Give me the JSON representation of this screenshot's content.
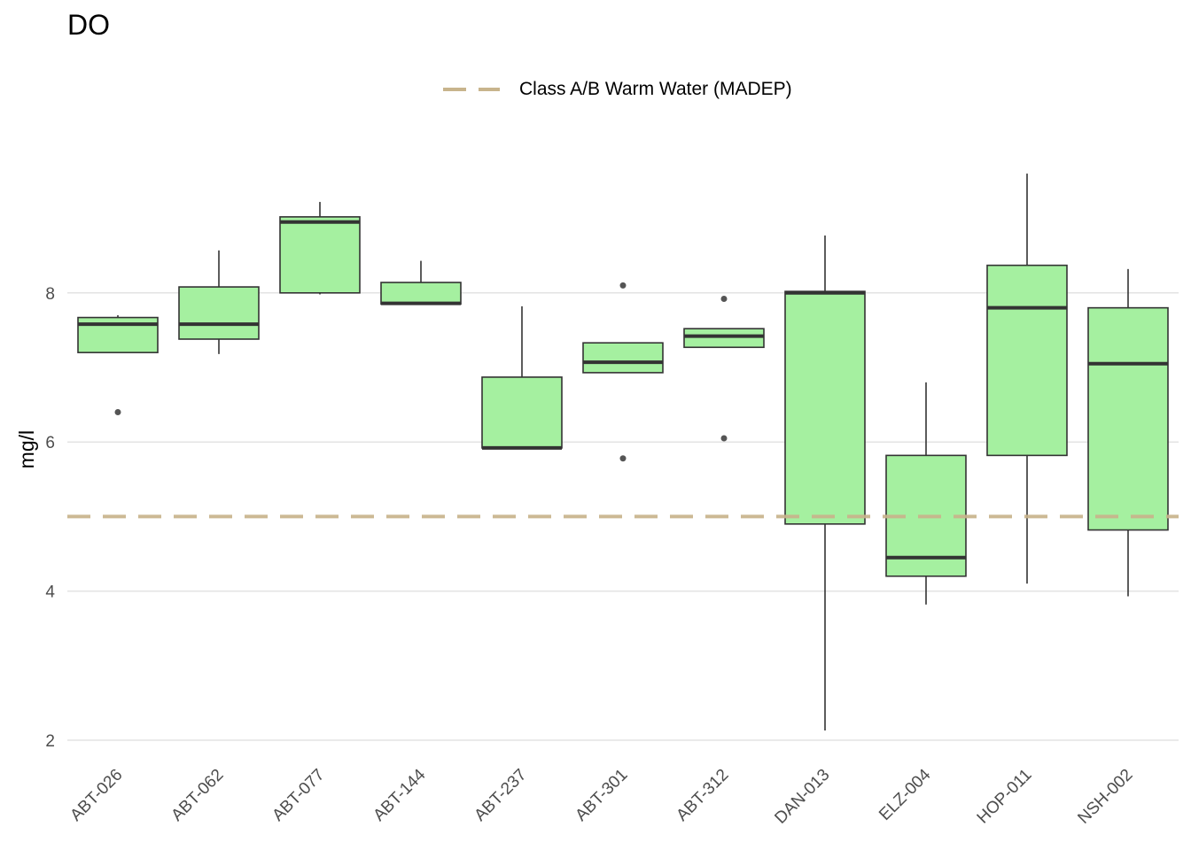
{
  "chart_data": {
    "type": "boxplot",
    "title": "DO",
    "xlabel": "",
    "ylabel": "mg/l",
    "ylim": [
      1.9,
      10.2
    ],
    "yticks": [
      2,
      4,
      6,
      8
    ],
    "grid": true,
    "fill_color": "#a5f0a0",
    "line_color": "#333333",
    "categories": [
      "ABT-026",
      "ABT-062",
      "ABT-077",
      "ABT-144",
      "ABT-237",
      "ABT-301",
      "ABT-312",
      "DAN-013",
      "ELZ-004",
      "HOP-011",
      "NSH-002"
    ],
    "boxes": [
      {
        "category": "ABT-026",
        "whisker_low": 7.2,
        "q1": 7.2,
        "median": 7.58,
        "q3": 7.67,
        "whisker_high": 7.7,
        "outliers": [
          6.4
        ]
      },
      {
        "category": "ABT-062",
        "whisker_low": 7.18,
        "q1": 7.38,
        "median": 7.58,
        "q3": 8.08,
        "whisker_high": 8.57,
        "outliers": []
      },
      {
        "category": "ABT-077",
        "whisker_low": 7.98,
        "q1": 8.0,
        "median": 8.95,
        "q3": 9.02,
        "whisker_high": 9.22,
        "outliers": []
      },
      {
        "category": "ABT-144",
        "whisker_low": 7.85,
        "q1": 7.85,
        "median": 7.86,
        "q3": 8.14,
        "whisker_high": 8.43,
        "outliers": []
      },
      {
        "category": "ABT-237",
        "whisker_low": 5.92,
        "q1": 5.92,
        "median": 5.92,
        "q3": 6.87,
        "whisker_high": 7.82,
        "outliers": []
      },
      {
        "category": "ABT-301",
        "whisker_low": 6.93,
        "q1": 6.93,
        "median": 7.07,
        "q3": 7.33,
        "whisker_high": 7.33,
        "outliers": [
          8.1,
          5.78
        ]
      },
      {
        "category": "ABT-312",
        "whisker_low": 7.27,
        "q1": 7.27,
        "median": 7.42,
        "q3": 7.52,
        "whisker_high": 7.52,
        "outliers": [
          7.92,
          6.05
        ]
      },
      {
        "category": "DAN-013",
        "whisker_low": 2.13,
        "q1": 4.9,
        "median": 8.0,
        "q3": 8.02,
        "whisker_high": 8.77,
        "outliers": []
      },
      {
        "category": "ELZ-004",
        "whisker_low": 3.82,
        "q1": 4.2,
        "median": 4.45,
        "q3": 5.82,
        "whisker_high": 6.8,
        "outliers": []
      },
      {
        "category": "HOP-011",
        "whisker_low": 4.1,
        "q1": 5.82,
        "median": 7.8,
        "q3": 8.37,
        "whisker_high": 9.6,
        "outliers": []
      },
      {
        "category": "NSH-002",
        "whisker_low": 3.93,
        "q1": 4.82,
        "median": 7.05,
        "q3": 7.8,
        "whisker_high": 8.32,
        "outliers": []
      }
    ],
    "reference_lines": [
      {
        "name": "Class A/B Warm Water (MADEP)",
        "y": 5,
        "color": "#c8b48c",
        "style": "dashed"
      }
    ],
    "legend": {
      "position": "top",
      "entries": [
        "Class A/B Warm Water (MADEP)"
      ]
    }
  }
}
